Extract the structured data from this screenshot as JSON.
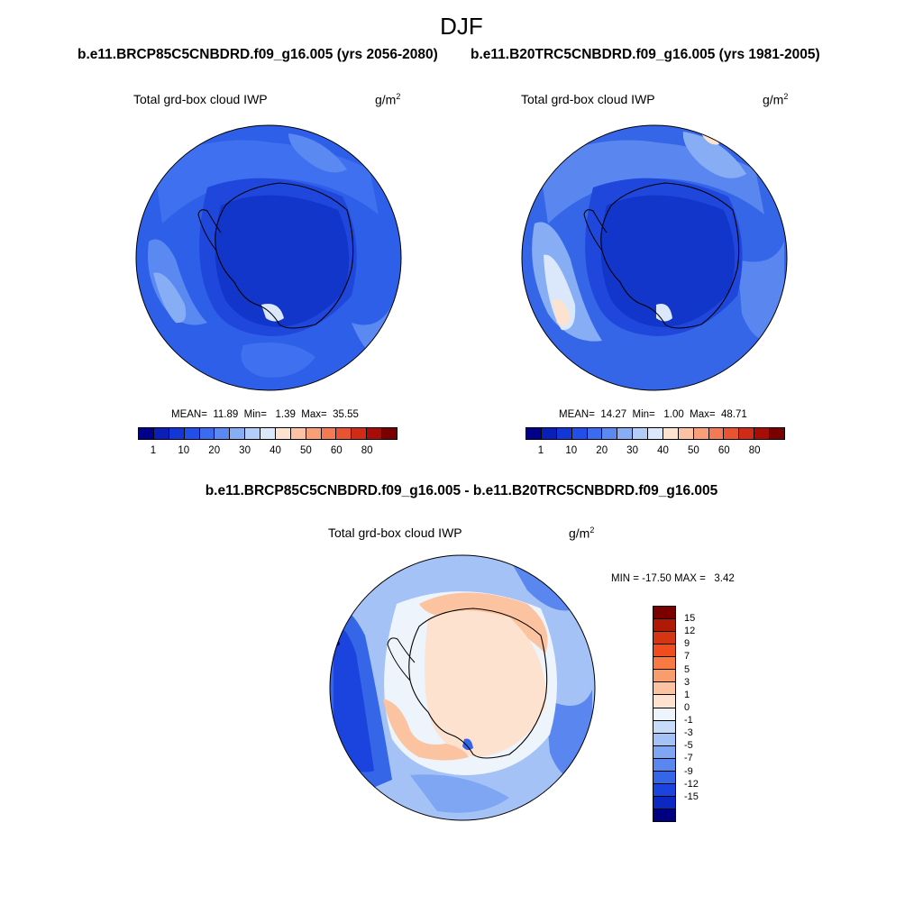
{
  "title": "DJF",
  "panels": [
    {
      "case": "b.e11.BRCP85C5CNBDRD.f09_g16.005 (yrs 2056-2080)",
      "variable": "Total grd-box cloud IWP",
      "units": "g/m",
      "units_sup": "2",
      "mean_label": "MEAN=",
      "mean": "11.89",
      "min_label": "Min=",
      "min": "1.39",
      "max_label": "Max=",
      "max": "35.55"
    },
    {
      "case": "b.e11.B20TRC5CNBDRD.f09_g16.005 (yrs 1981-2005)",
      "variable": "Total grd-box cloud IWP",
      "units": "g/m",
      "units_sup": "2",
      "mean_label": "MEAN=",
      "mean": "14.27",
      "min_label": "Min=",
      "min": "1.00",
      "max_label": "Max=",
      "max": "48.71"
    }
  ],
  "difference": {
    "title": "b.e11.BRCP85C5CNBDRD.f09_g16.005 - b.e11.B20TRC5CNBDRD.f09_g16.005",
    "variable": "Total grd-box cloud IWP",
    "units": "g/m",
    "units_sup": "2",
    "minmax": "MIN = -17.50 MAX =   3.42"
  },
  "abs_colorbar": {
    "colors": [
      "#00008a",
      "#0a1fb8",
      "#1336d6",
      "#2050e8",
      "#3a6cf0",
      "#5b89f2",
      "#87aef5",
      "#b3cdf8",
      "#dbe8fb",
      "#fde3cf",
      "#fbc3a3",
      "#f89f77",
      "#f37a52",
      "#e9532f",
      "#d02c15",
      "#a80c06",
      "#7a0000"
    ],
    "labels": [
      "1",
      "10",
      "20",
      "30",
      "40",
      "50",
      "60",
      "80"
    ]
  },
  "diff_colorbar": {
    "colors": [
      "#7a0000",
      "#b01a05",
      "#d63511",
      "#f04d1f",
      "#f77a45",
      "#f99d6d",
      "#fbc3a0",
      "#fde3cf",
      "#eef4fc",
      "#c8dbf8",
      "#a4c2f5",
      "#7ea6f3",
      "#5a87ef",
      "#3566e8",
      "#1a44dd",
      "#0b28c2",
      "#000080"
    ],
    "labels": [
      "15",
      "12",
      "9",
      "7",
      "5",
      "3",
      "1",
      "0",
      "-1",
      "-3",
      "-5",
      "-7",
      "-9",
      "-12",
      "-15"
    ]
  }
}
